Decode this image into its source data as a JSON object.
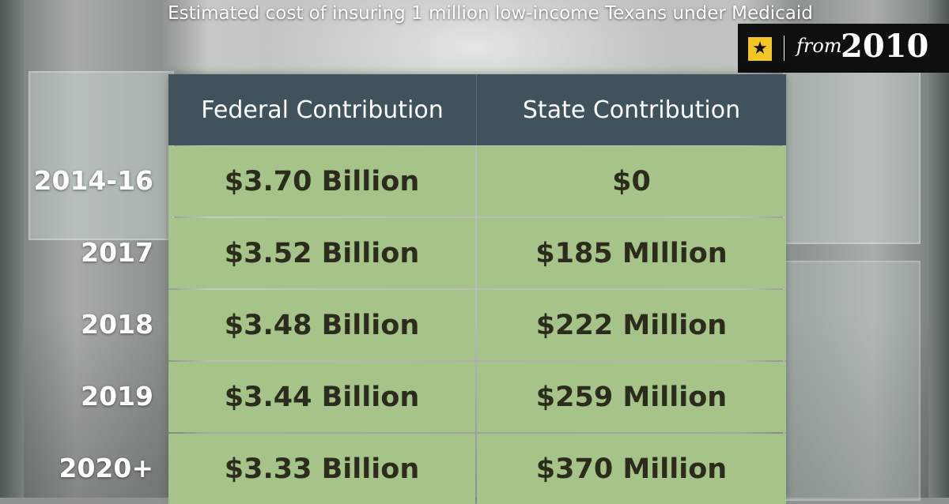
{
  "title": "Estimated cost of insuring 1 million low-income Texans under Medicaid",
  "badge": {
    "from": "from",
    "year": "2010",
    "icon": "star-icon",
    "accent": "#f4c623"
  },
  "colors": {
    "header_bg": "#40525c",
    "cell_bg": "#a6c48a",
    "cell_text": "#2c2c1c"
  },
  "chart_data": {
    "type": "table",
    "title": "Estimated cost of insuring 1 million low-income Texans under Medicaid",
    "columns": [
      "Federal Contribution",
      "State Contribution"
    ],
    "rows": [
      {
        "year": "2014-16",
        "federal": "$3.70 Billion",
        "state": "$0"
      },
      {
        "year": "2017",
        "federal": "$3.52 Billion",
        "state": "$185 MIllion"
      },
      {
        "year": "2018",
        "federal": "$3.48 Billion",
        "state": "$222 Million"
      },
      {
        "year": "2019",
        "federal": "$3.44 Billion",
        "state": "$259 Million"
      },
      {
        "year": "2020+",
        "federal": "$3.33 Billion",
        "state": "$370 Million"
      }
    ]
  }
}
